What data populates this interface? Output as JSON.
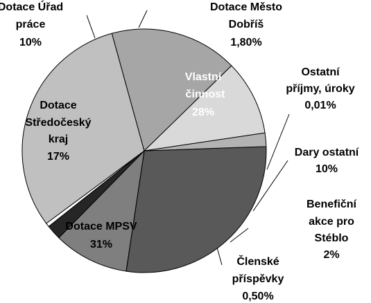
{
  "chart_data": {
    "type": "pie",
    "slices": [
      {
        "label": "Vlastní činnost",
        "value_text": "28%",
        "value": 28,
        "color": "#595959"
      },
      {
        "label": "Ostatní příjmy, úroky",
        "value_text": "0,01%",
        "value": 0.01,
        "color": "#404040"
      },
      {
        "label": "Dary ostatní",
        "value_text": "10%",
        "value": 10,
        "color": "#7f7f7f"
      },
      {
        "label": "Benefiční akce pro Stéblo",
        "value_text": "2%",
        "value": 2,
        "color": "#262626"
      },
      {
        "label": "Členské příspěvky",
        "value_text": "0,50%",
        "value": 0.5,
        "color": "#ffffff"
      },
      {
        "label": "Dotace MPSV",
        "value_text": "31%",
        "value": 31,
        "color": "#c0c0c0"
      },
      {
        "label": "Dotace Středočeský kraj",
        "value_text": "17%",
        "value": 17,
        "color": "#a6a6a6"
      },
      {
        "label": "Dotace Úřad práce",
        "value_text": "10%",
        "value": 10,
        "color": "#d9d9d9"
      },
      {
        "label": "Dotace Město Dobříš",
        "value_text": "1,80%",
        "value": 1.8,
        "color": "#b3b3b3"
      }
    ]
  }
}
